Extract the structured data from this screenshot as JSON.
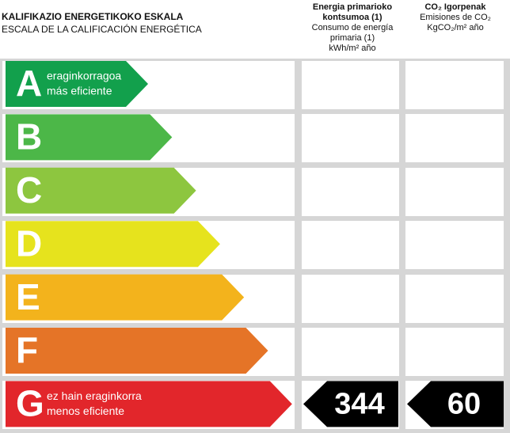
{
  "header": {
    "title": "KALIFIKAZIO ENERGETIKOKO ESKALA",
    "subtitle": "ESCALA DE LA CALIFICACIÓN ENERGÉTICA"
  },
  "columns": [
    {
      "title": "Energia primarioko kontsumoa (1)",
      "subtitle": "Consumo de energía primaria (1)",
      "unit": "kWh/m² año"
    },
    {
      "title": "CO₂ Igorpenak",
      "subtitle": "Emisiones de CO₂",
      "unit": "KgCO₂/m² año"
    }
  ],
  "rows": [
    {
      "letter": "A",
      "label_eu": "eraginkorragoa",
      "label_es": "más eficiente",
      "color": "#12a04c"
    },
    {
      "letter": "B",
      "color": "#4cb748"
    },
    {
      "letter": "C",
      "color": "#8dc63f"
    },
    {
      "letter": "D",
      "color": "#e6e31d"
    },
    {
      "letter": "E",
      "color": "#f3b31c"
    },
    {
      "letter": "F",
      "color": "#e57427"
    },
    {
      "letter": "G",
      "label_eu": "ez hain eraginkorra",
      "label_es": "menos eficiente",
      "color": "#e2262b"
    }
  ],
  "rating": {
    "row": 6,
    "consumption": 344,
    "emissions": 60
  }
}
